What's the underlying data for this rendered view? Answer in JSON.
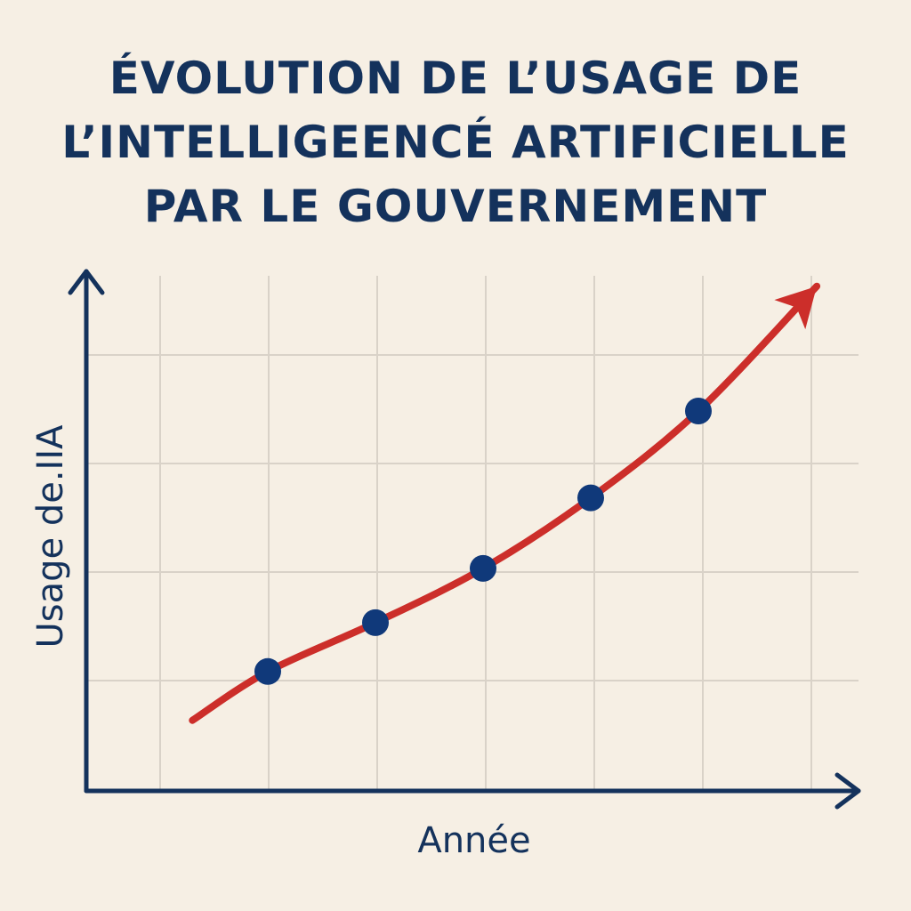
{
  "chart_data": {
    "type": "line",
    "title_lines": [
      "ÉVOLUTION DE L’USAGE DE",
      "L’INTELLIGEENCÉ ARTIFICIELLE",
      "PAR LE GOUVERNEMENT"
    ],
    "xlabel": "Année",
    "ylabel": "Usage de.IIA",
    "grid": true,
    "legend": "none",
    "trend_arrow": true,
    "x_ticks": [
      0,
      1,
      2,
      3,
      4,
      5,
      6
    ],
    "y_ticks": [
      0,
      1,
      2,
      3,
      4,
      5
    ],
    "xlim": [
      0,
      6.7
    ],
    "ylim": [
      0,
      5
    ],
    "series": [
      {
        "curve": [
          [
            0.3,
            0.65
          ],
          [
            1,
            1.1
          ],
          [
            2,
            1.55
          ],
          [
            3,
            2.05
          ],
          [
            4,
            2.7
          ],
          [
            5,
            3.5
          ],
          [
            6.1,
            4.65
          ]
        ],
        "points": [
          [
            1,
            1.1
          ],
          [
            2,
            1.55
          ],
          [
            3,
            2.05
          ],
          [
            4,
            2.7
          ],
          [
            5,
            3.5
          ]
        ],
        "color": "#cc2e2a",
        "marker_color": "#10397a"
      }
    ],
    "colors": {
      "axis": "#14325c",
      "grid": "#d9d2c8",
      "background": "#f6efe4"
    }
  }
}
